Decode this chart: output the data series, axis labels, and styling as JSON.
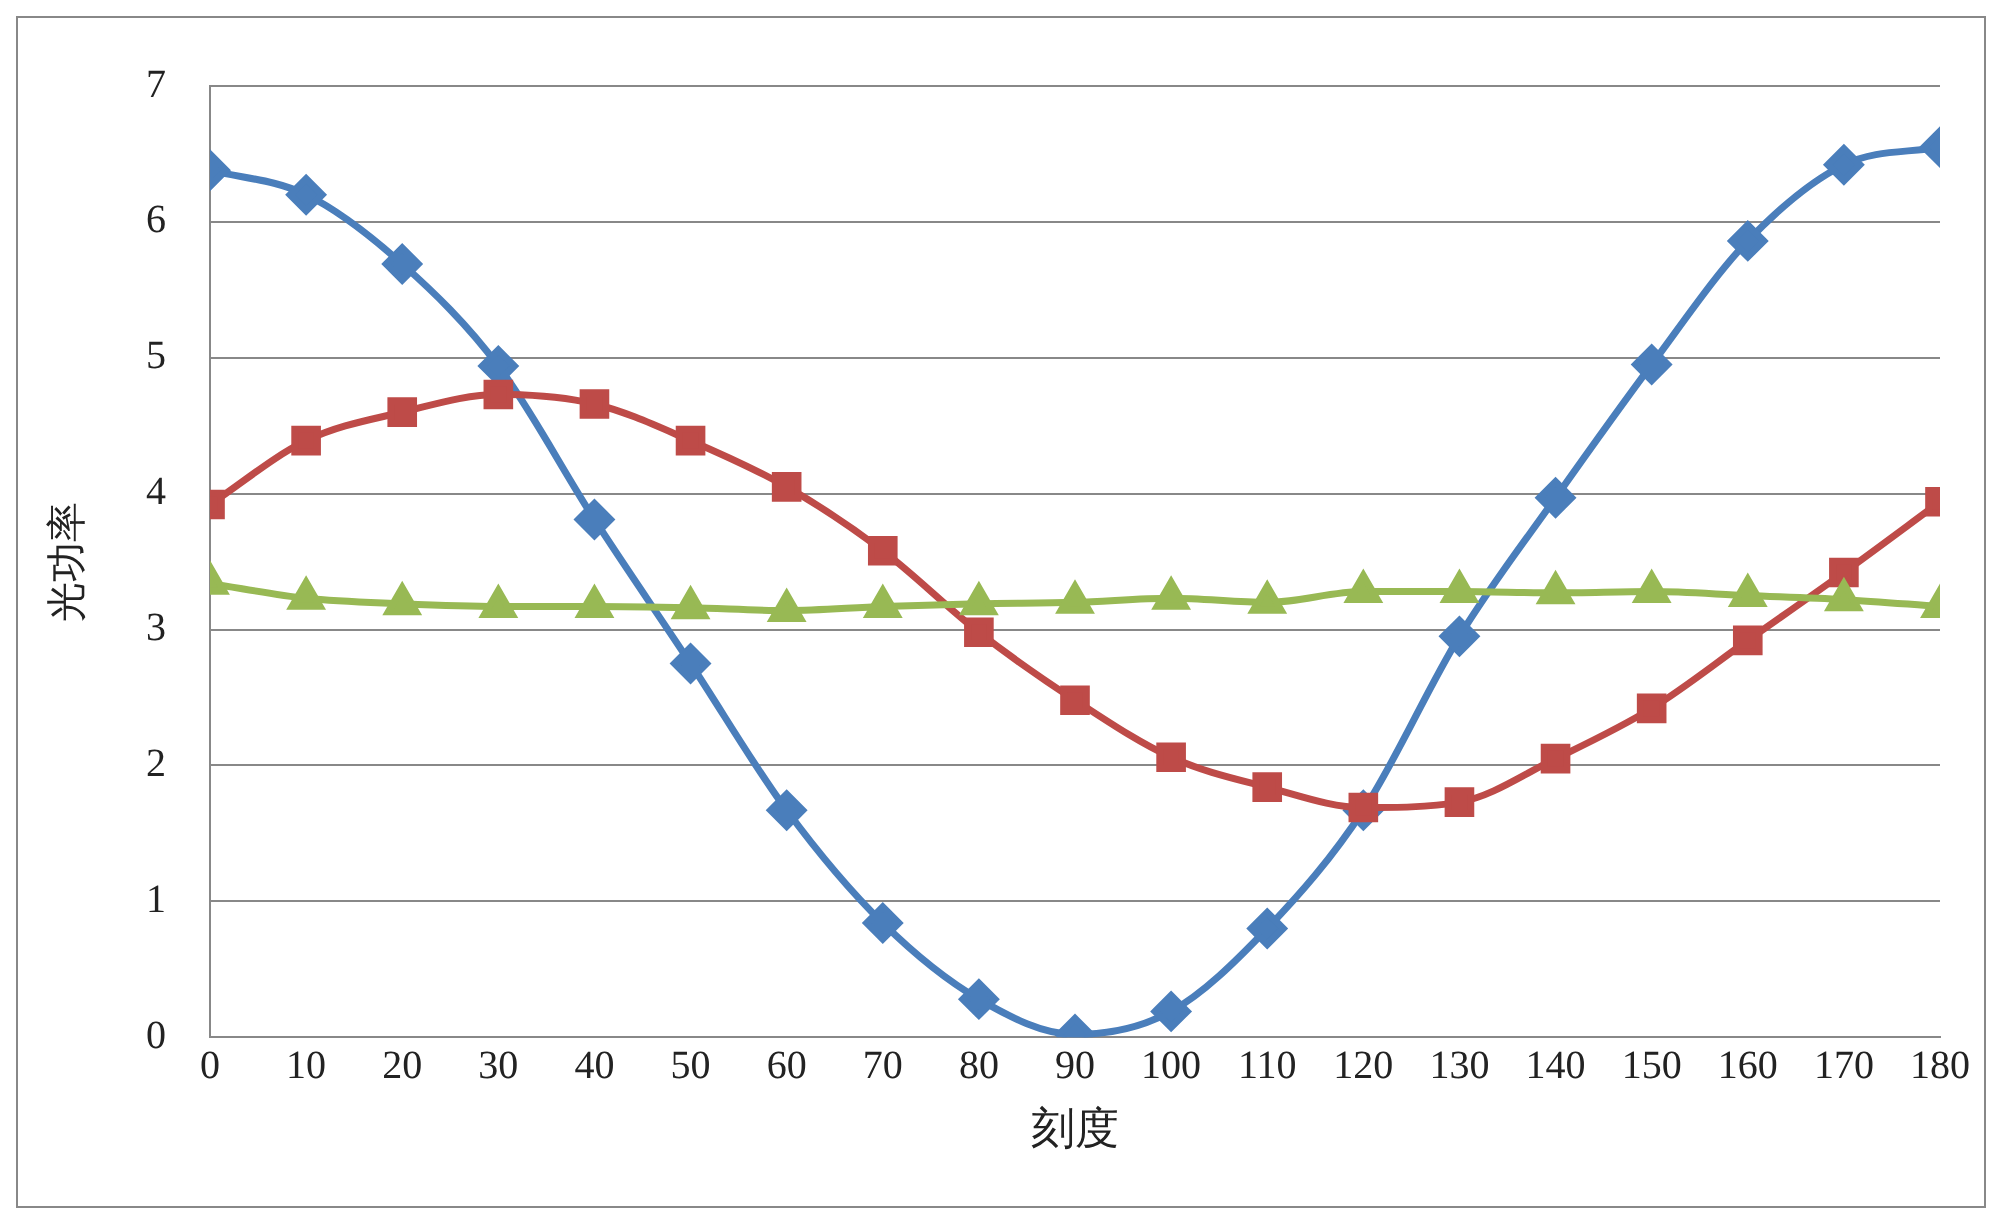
{
  "chart_data": {
    "type": "line",
    "xlabel": "刻度",
    "ylabel": "光功率",
    "x": [
      0,
      10,
      20,
      30,
      40,
      50,
      60,
      70,
      80,
      90,
      100,
      110,
      120,
      130,
      140,
      150,
      160,
      170,
      180
    ],
    "xlim": [
      0,
      180
    ],
    "xticks": [
      0,
      10,
      20,
      30,
      40,
      50,
      60,
      70,
      80,
      90,
      100,
      110,
      120,
      130,
      140,
      150,
      160,
      170,
      180
    ],
    "ylim": [
      0,
      7
    ],
    "yticks": [
      0,
      1,
      2,
      3,
      4,
      5,
      6,
      7
    ],
    "grid": "y",
    "legend": false,
    "line_style": "solid",
    "series": [
      {
        "color": "#4a7ebb",
        "marker": "diamond",
        "values": [
          6.38,
          6.2,
          5.69,
          4.94,
          3.81,
          2.75,
          1.67,
          0.84,
          0.28,
          0.02,
          0.19,
          0.8,
          1.67,
          2.95,
          3.97,
          4.95,
          5.86,
          6.42,
          6.55
        ]
      },
      {
        "color": "#be4b48",
        "marker": "square",
        "values": [
          3.92,
          4.39,
          4.6,
          4.73,
          4.66,
          4.39,
          4.05,
          3.58,
          2.98,
          2.48,
          2.06,
          1.84,
          1.69,
          1.73,
          2.05,
          2.42,
          2.92,
          3.42,
          3.94
        ]
      },
      {
        "color": "#98b954",
        "marker": "triangle",
        "values": [
          3.34,
          3.23,
          3.19,
          3.17,
          3.17,
          3.16,
          3.14,
          3.17,
          3.19,
          3.2,
          3.23,
          3.2,
          3.28,
          3.28,
          3.27,
          3.28,
          3.25,
          3.22,
          3.17
        ]
      }
    ]
  }
}
